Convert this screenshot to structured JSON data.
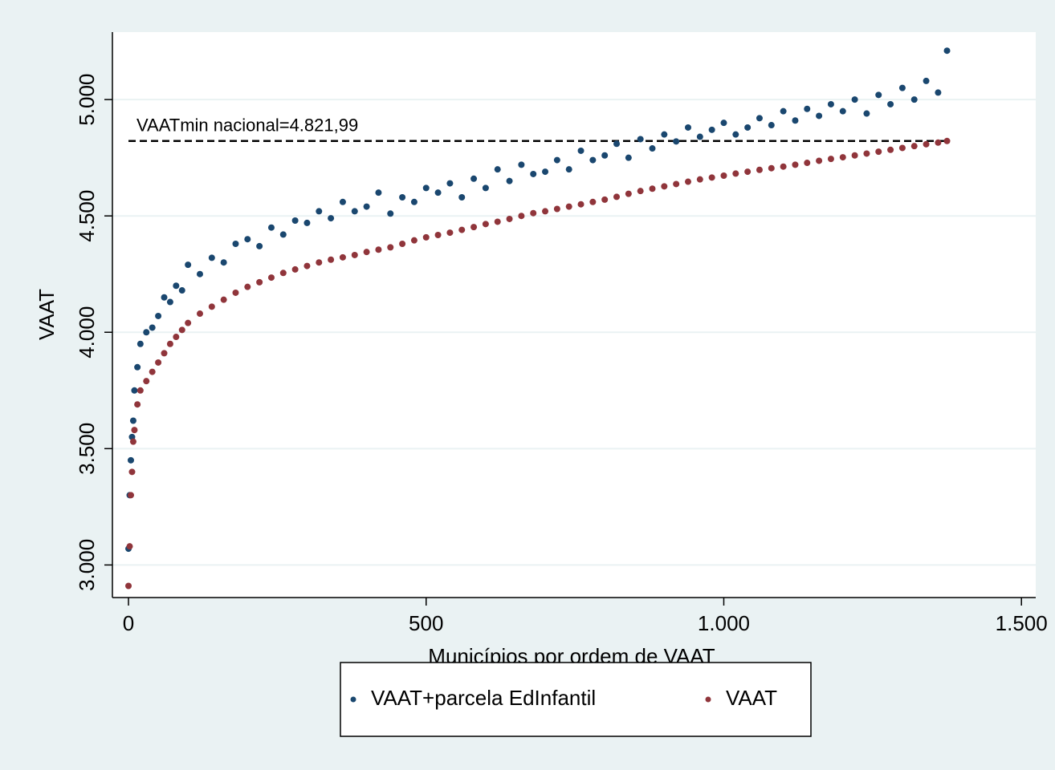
{
  "chart_data": {
    "type": "scatter",
    "xlabel": "Municípios por ordem de VAAT",
    "ylabel": "VAAT",
    "xlim": [
      -27,
      1524
    ],
    "ylim": [
      2860,
      5290
    ],
    "xticks": [
      0,
      500,
      {
        "value": 1000,
        "label": "1.000"
      },
      {
        "value": 1500,
        "label": "1.500"
      }
    ],
    "yticks": [
      {
        "value": 3000,
        "label": "3.000"
      },
      {
        "value": 3500,
        "label": "3.500"
      },
      {
        "value": 4000,
        "label": "4.000"
      },
      {
        "value": 4500,
        "label": "4.500"
      },
      {
        "value": 5000,
        "label": "5.000"
      }
    ],
    "grid": true,
    "reference_line": {
      "value": 4821.99,
      "label": "VAATmin nacional=4.821,99",
      "xlim": [
        0,
        1375
      ]
    },
    "legend_position": "bottom",
    "x": [
      0,
      2,
      4,
      6,
      8,
      10,
      15,
      20,
      30,
      40,
      50,
      60,
      70,
      80,
      90,
      100,
      120,
      140,
      160,
      180,
      200,
      220,
      240,
      260,
      280,
      300,
      320,
      340,
      360,
      380,
      400,
      420,
      440,
      460,
      480,
      500,
      520,
      540,
      560,
      580,
      600,
      620,
      640,
      660,
      680,
      700,
      720,
      740,
      760,
      780,
      800,
      820,
      840,
      860,
      880,
      900,
      920,
      940,
      960,
      980,
      1000,
      1020,
      1040,
      1060,
      1080,
      1100,
      1120,
      1140,
      1160,
      1180,
      1200,
      1220,
      1240,
      1260,
      1280,
      1300,
      1320,
      1340,
      1360,
      1375
    ],
    "series": [
      {
        "name": "VAAT+parcela EdInfantil",
        "color": "#1a476f",
        "values": [
          3070,
          3300,
          3450,
          3550,
          3620,
          3750,
          3850,
          3950,
          4000,
          4020,
          4070,
          4150,
          4130,
          4200,
          4180,
          4290,
          4250,
          4320,
          4300,
          4380,
          4400,
          4370,
          4450,
          4420,
          4480,
          4470,
          4520,
          4490,
          4560,
          4520,
          4540,
          4600,
          4510,
          4580,
          4560,
          4620,
          4600,
          4640,
          4580,
          4660,
          4620,
          4700,
          4650,
          4720,
          4680,
          4690,
          4740,
          4700,
          4780,
          4740,
          4760,
          4810,
          4750,
          4830,
          4790,
          4850,
          4820,
          4880,
          4840,
          4870,
          4900,
          4850,
          4880,
          4920,
          4890,
          4950,
          4910,
          4960,
          4930,
          4980,
          4950,
          5000,
          4940,
          5020,
          4980,
          5050,
          5000,
          5080,
          5030,
          5210
        ]
      },
      {
        "name": "VAAT",
        "color": "#90353b",
        "values": [
          2910,
          3080,
          3300,
          3400,
          3530,
          3580,
          3690,
          3750,
          3790,
          3830,
          3870,
          3910,
          3950,
          3980,
          4010,
          4040,
          4080,
          4110,
          4140,
          4170,
          4195,
          4215,
          4235,
          4255,
          4270,
          4285,
          4300,
          4312,
          4322,
          4332,
          4345,
          4355,
          4365,
          4380,
          4395,
          4408,
          4418,
          4428,
          4440,
          4452,
          4465,
          4475,
          4487,
          4500,
          4512,
          4520,
          4530,
          4540,
          4550,
          4560,
          4570,
          4582,
          4595,
          4607,
          4617,
          4627,
          4637,
          4647,
          4657,
          4665,
          4673,
          4682,
          4690,
          4698,
          4705,
          4712,
          4720,
          4728,
          4737,
          4745,
          4752,
          4760,
          4768,
          4776,
          4784,
          4792,
          4800,
          4808,
          4815,
          4822
        ]
      }
    ]
  }
}
